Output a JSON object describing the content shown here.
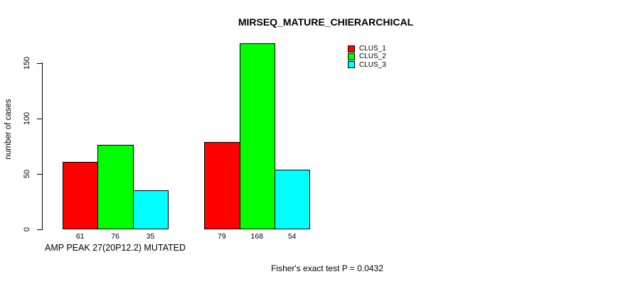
{
  "chart_data": {
    "type": "bar",
    "grouped": true,
    "title": "MIRSEQ_MATURE_CHIERARCHICAL",
    "ylabel": "number of cases",
    "categories": [
      "AMP PEAK 27(20P12.2) MUTATED",
      ""
    ],
    "series": [
      {
        "name": "CLUS_1",
        "color": "#ff0000",
        "values": [
          61,
          79
        ]
      },
      {
        "name": "CLUS_2",
        "color": "#00ff00",
        "values": [
          76,
          168
        ]
      },
      {
        "name": "CLUS_3",
        "color": "#00ffff",
        "values": [
          35,
          54
        ]
      }
    ],
    "bar_value_labels": [
      [
        61,
        76,
        35
      ],
      [
        79,
        168,
        54
      ]
    ],
    "yticks": [
      0,
      50,
      100,
      150
    ],
    "ylim": [
      0,
      175
    ],
    "grid": false,
    "legend_position": "top-right",
    "bar_border_color": "#000000",
    "annotation": "Fisher's exact test P = 0.0432"
  }
}
